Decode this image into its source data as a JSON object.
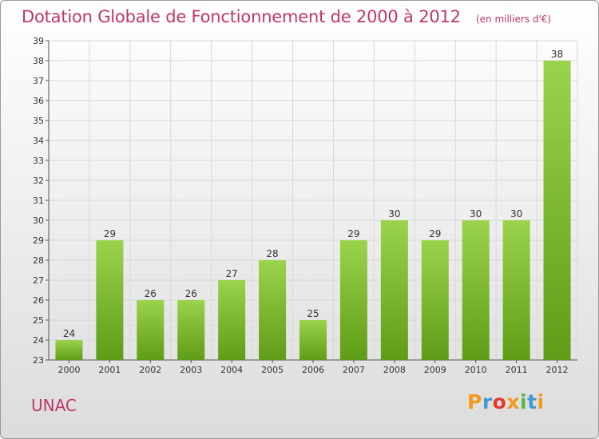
{
  "header": {
    "title": "Dotation Globale de Fonctionnement de 2000 à 2012",
    "unit": "(en milliers d'€)"
  },
  "footer": {
    "commune": "UNAC",
    "brand": "Proxiti"
  },
  "colors": {
    "bar_top": "#9bd34c",
    "bar_bottom": "#5f9c17",
    "title": "#c0356a",
    "grid": "#d8d8d8"
  },
  "chart_data": {
    "type": "bar",
    "title": "Dotation Globale de Fonctionnement de 2000 à 2012",
    "subtitle": "(en milliers d'€)",
    "categories": [
      "2000",
      "2001",
      "2002",
      "2003",
      "2004",
      "2005",
      "2006",
      "2007",
      "2008",
      "2009",
      "2010",
      "2011",
      "2012"
    ],
    "values": [
      24,
      29,
      26,
      26,
      27,
      28,
      25,
      29,
      30,
      29,
      30,
      30,
      38
    ],
    "ylim": [
      23,
      39
    ],
    "yticks": [
      23,
      24,
      25,
      26,
      27,
      28,
      29,
      30,
      31,
      32,
      33,
      34,
      35,
      36,
      37,
      38,
      39
    ],
    "grid": true,
    "legend": "none",
    "xlabel": "",
    "ylabel": ""
  }
}
